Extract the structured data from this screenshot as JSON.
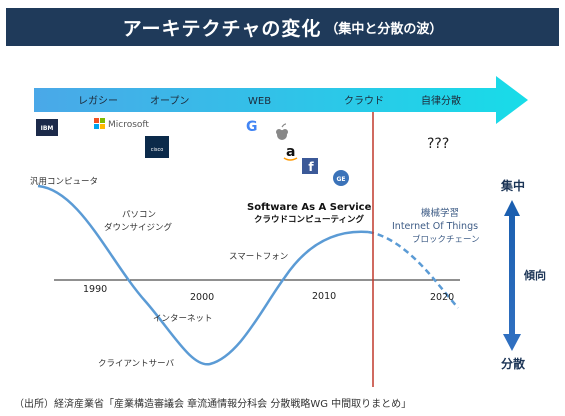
{
  "title": {
    "main": "アーキテクチャの変化",
    "sub": "（集中と分散の波）"
  },
  "timeline": {
    "eras": [
      "レガシー",
      "オープン",
      "WEB",
      "クラウド",
      "自律分散"
    ]
  },
  "logos": {
    "ibm": "IBM",
    "microsoft": "Microsoft",
    "cisco": "cisco",
    "google": "G",
    "amazon": "a",
    "facebook": "f",
    "ge": "GE"
  },
  "unknown": "???",
  "labels": {
    "mainframe": "汎用コンピュータ",
    "pc_1": "パソコン",
    "pc_2": "ダウンサイジング",
    "internet": "インターネット",
    "client_server": "クライアントサーバ",
    "smartphone": "スマートフォン",
    "saas_1": "Software As A Service",
    "saas_2": "クラウドコンピューティング",
    "future_1": "機械学習",
    "future_2": "Internet Of Things",
    "future_3": "ブロックチェーン"
  },
  "years": [
    "1990",
    "2000",
    "2010",
    "2020"
  ],
  "side": {
    "top": "集中",
    "middle": "傾向",
    "bottom": "分散"
  },
  "source": "（出所）経済産業省「産業構造審議会 章流通情報分科会 分散戦略WG 中間取りまとめ」",
  "colors": {
    "banner": "#1f3a5a",
    "curve": "#5b9bd5",
    "arrow_start": "#4aa8e8",
    "arrow_end": "#18dce8",
    "divider": "#c0392b",
    "side_arrow": "#2f6fc0"
  }
}
